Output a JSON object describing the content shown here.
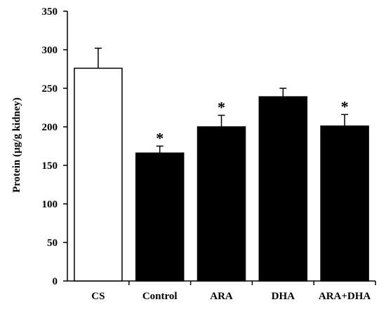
{
  "chart_data": {
    "type": "bar",
    "categories": [
      "CS",
      "Control",
      "ARA",
      "DHA",
      "ARA+DHA"
    ],
    "values": [
      276,
      166,
      200,
      239,
      201
    ],
    "errors": [
      26,
      9,
      15,
      11,
      15
    ],
    "significance": [
      "",
      "*",
      "*",
      "",
      "*"
    ],
    "bar_colors": [
      "#ffffff",
      "#000000",
      "#000000",
      "#000000",
      "#000000"
    ],
    "ylabel": "Protein (µg/g kidney)",
    "xlabel": "",
    "ylim": [
      0,
      350
    ],
    "yticks": [
      0,
      50,
      100,
      150,
      200,
      250,
      300,
      350
    ],
    "grid": false,
    "legend": "none"
  }
}
